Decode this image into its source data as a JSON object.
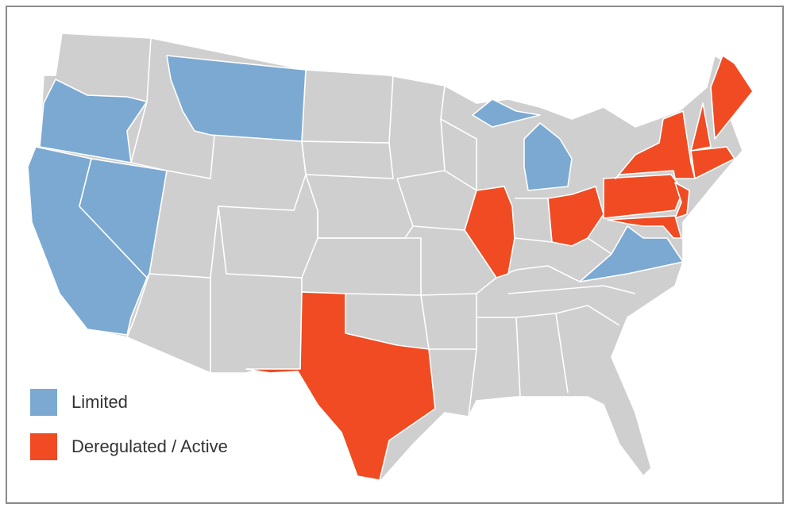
{
  "legend": [
    {
      "label": "Limited",
      "color": "#7ba9d2"
    },
    {
      "label": "Deregulated / Active",
      "color": "#f04b22"
    }
  ]
}
